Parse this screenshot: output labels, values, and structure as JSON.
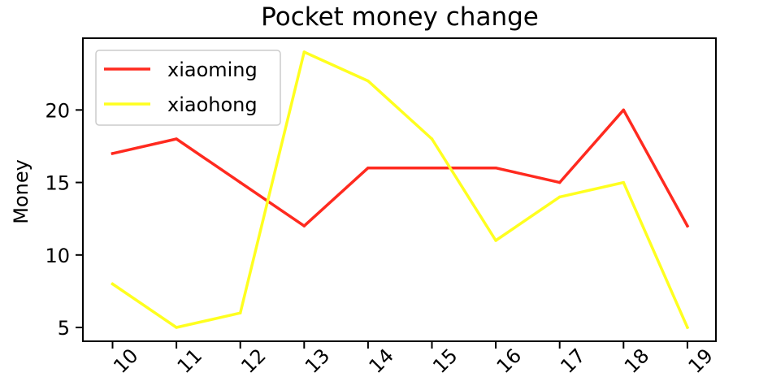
{
  "chart_data": {
    "type": "line",
    "title": "Pocket money change",
    "xlabel": "",
    "ylabel": "Money",
    "x": [
      "10",
      "11",
      "12",
      "13",
      "14",
      "15",
      "16",
      "17",
      "18",
      "19"
    ],
    "yticks": [
      5,
      10,
      15,
      20
    ],
    "ylim": [
      4.05,
      24.95
    ],
    "grid": false,
    "legend_position": "top-left",
    "series": [
      {
        "name": "xiaoming",
        "color": "#ff2a1f",
        "values": [
          17,
          18,
          15,
          12,
          16,
          16,
          16,
          15,
          20,
          12
        ]
      },
      {
        "name": "xiaohong",
        "color": "#ffff1f",
        "values": [
          8,
          5,
          6,
          24,
          22,
          18,
          11,
          14,
          15,
          5
        ]
      }
    ]
  }
}
